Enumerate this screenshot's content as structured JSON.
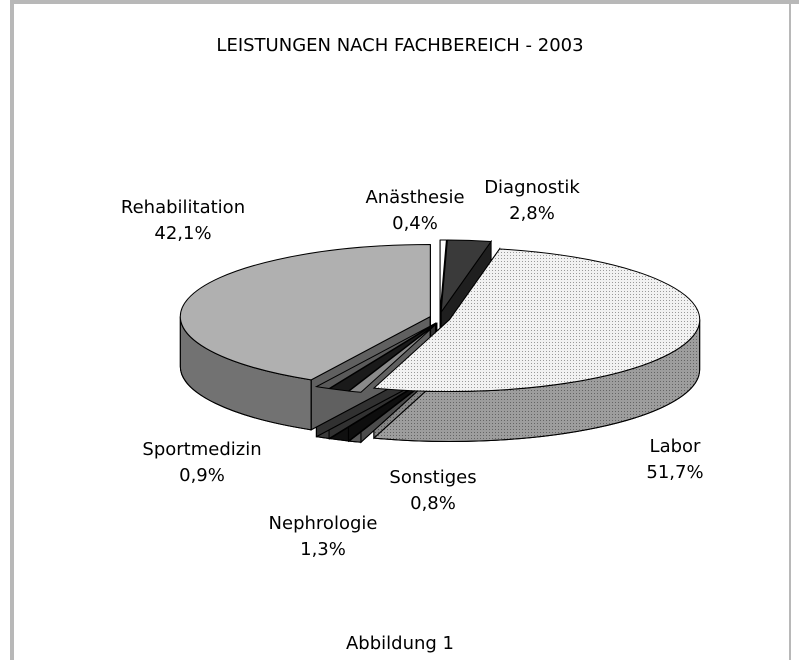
{
  "chart_data": {
    "type": "pie3d",
    "title": "LEISTUNGEN NACH FACHBEREICH - 2003",
    "caption": "Abbildung 1",
    "categories": [
      "Anästhesie",
      "Diagnostik",
      "Labor",
      "Sonstiges",
      "Nephrologie",
      "Sportmedizin",
      "Rehabilitation"
    ],
    "values": [
      0.4,
      2.8,
      51.7,
      0.8,
      1.3,
      0.9,
      42.1
    ],
    "value_labels": [
      "0,4%",
      "2,8%",
      "51,7%",
      "0,8%",
      "1,3%",
      "0,9%",
      "42,1%"
    ],
    "colors": [
      "#ffffff",
      "#3a3a3a",
      "#e6e6e6",
      "#8a8a8a",
      "#1a1a1a",
      "#5a5a5a",
      "#b0b0b0"
    ]
  }
}
